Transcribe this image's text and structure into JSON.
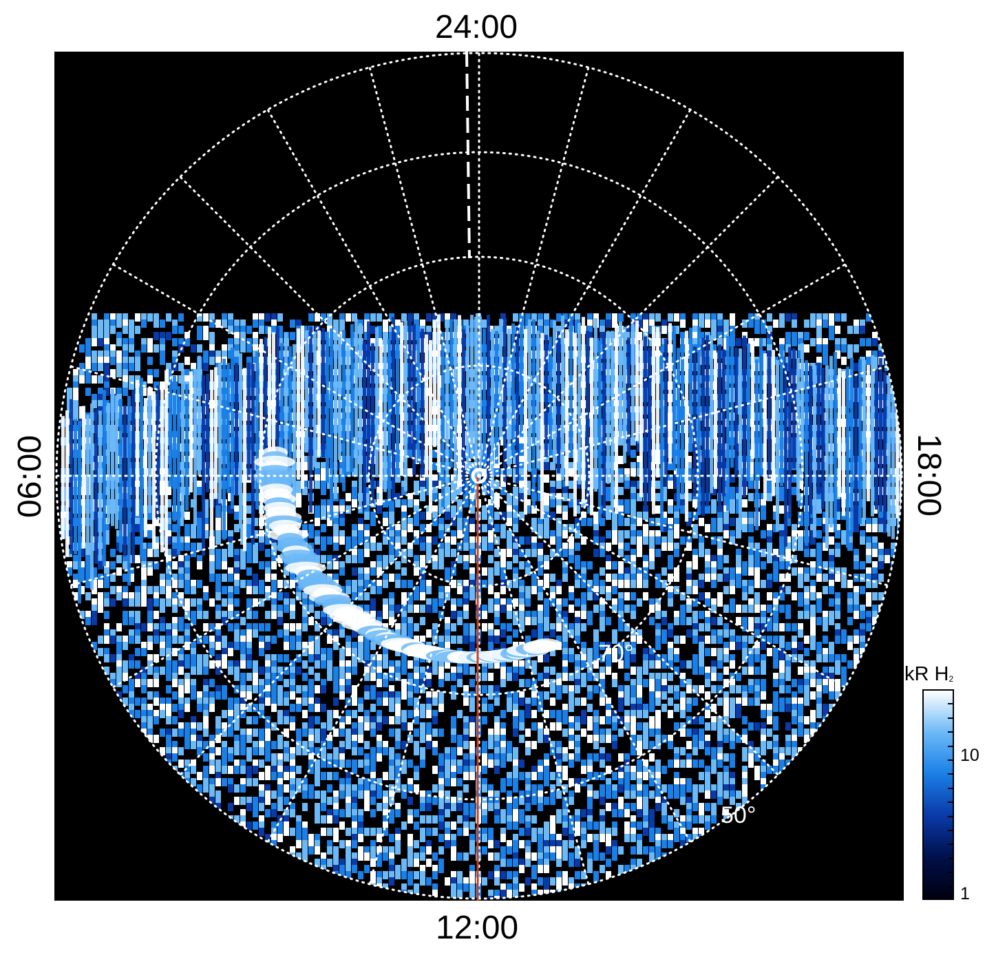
{
  "local_time_labels": {
    "top": "24:00",
    "bottom": "12:00",
    "left": "06:00",
    "right": "18:00"
  },
  "latitude_labels": [
    "70°",
    "50°"
  ],
  "colorbar": {
    "title_main": "kR H",
    "title_sub": "2",
    "ticks": [
      "10",
      "1"
    ],
    "colors": [
      "#000010",
      "#00104a",
      "#0a3aa8",
      "#1a7fe6",
      "#6cb9f7",
      "#ffffff"
    ]
  },
  "colors": {
    "background": "#000000",
    "grid": "#ffffff",
    "meridian": "#c7401e"
  }
}
